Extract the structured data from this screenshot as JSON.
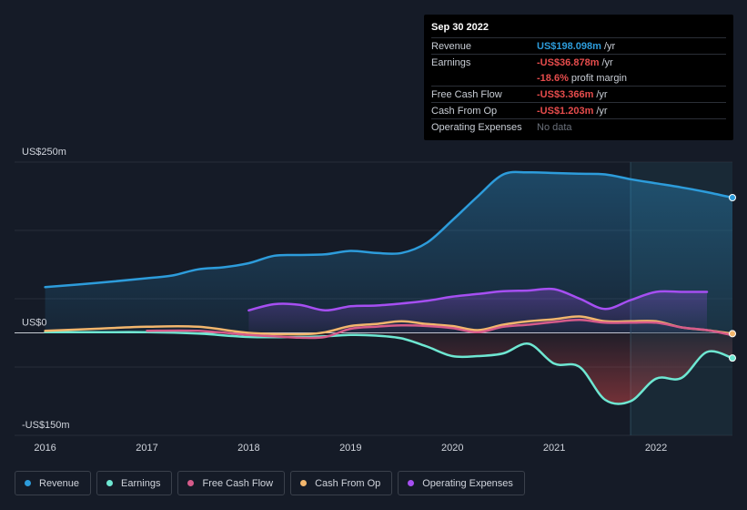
{
  "tooltip": {
    "date": "Sep 30 2022",
    "revenue_label": "Revenue",
    "revenue_value": "US$198.098m",
    "earnings_label": "Earnings",
    "earnings_value": "-US$36.878m",
    "margin_value": "-18.6%",
    "margin_text": "profit margin",
    "fcf_label": "Free Cash Flow",
    "fcf_value": "-US$3.366m",
    "cfo_label": "Cash From Op",
    "cfo_value": "-US$1.203m",
    "opex_label": "Operating Expenses",
    "opex_value": "No data",
    "unit": "/yr"
  },
  "legend": [
    {
      "label": "Revenue",
      "color": "#2d9cdb"
    },
    {
      "label": "Earnings",
      "color": "#6ee7d2"
    },
    {
      "label": "Free Cash Flow",
      "color": "#d65b8a"
    },
    {
      "label": "Cash From Op",
      "color": "#f2b66d"
    },
    {
      "label": "Operating Expenses",
      "color": "#a64ff2"
    }
  ],
  "chart_data": {
    "type": "area",
    "y_tick_labels": [
      "US$250m",
      "US$0",
      "-US$150m"
    ],
    "ylim": [
      -150,
      250
    ],
    "xlim": [
      2015.7,
      2022.75
    ],
    "x_tick_labels": [
      "2016",
      "2017",
      "2018",
      "2019",
      "2020",
      "2021",
      "2022"
    ],
    "x_ticks": [
      2016,
      2017,
      2018,
      2019,
      2020,
      2021,
      2022
    ],
    "highlight_from": 2021.75,
    "series": [
      {
        "name": "Revenue",
        "color": "#2d9cdb",
        "points": [
          [
            2016.0,
            67
          ],
          [
            2016.5,
            73
          ],
          [
            2017.0,
            80
          ],
          [
            2017.25,
            84
          ],
          [
            2017.5,
            93
          ],
          [
            2017.75,
            96
          ],
          [
            2018.0,
            102
          ],
          [
            2018.25,
            113
          ],
          [
            2018.5,
            114
          ],
          [
            2018.75,
            115
          ],
          [
            2019.0,
            120
          ],
          [
            2019.25,
            117
          ],
          [
            2019.5,
            117
          ],
          [
            2019.75,
            132
          ],
          [
            2020.0,
            165
          ],
          [
            2020.25,
            200
          ],
          [
            2020.5,
            232
          ],
          [
            2020.75,
            235
          ],
          [
            2021.0,
            234
          ],
          [
            2021.25,
            233
          ],
          [
            2021.5,
            232
          ],
          [
            2021.75,
            225
          ],
          [
            2022.0,
            219
          ],
          [
            2022.25,
            213
          ],
          [
            2022.5,
            206
          ],
          [
            2022.75,
            198
          ]
        ]
      },
      {
        "name": "Earnings",
        "color": "#6ee7d2",
        "points": [
          [
            2016.0,
            1
          ],
          [
            2016.5,
            1
          ],
          [
            2017.0,
            1
          ],
          [
            2017.5,
            -1
          ],
          [
            2018.0,
            -6
          ],
          [
            2018.5,
            -6
          ],
          [
            2018.75,
            -5
          ],
          [
            2019.0,
            -3
          ],
          [
            2019.25,
            -4
          ],
          [
            2019.5,
            -8
          ],
          [
            2019.75,
            -20
          ],
          [
            2020.0,
            -34
          ],
          [
            2020.25,
            -34
          ],
          [
            2020.5,
            -30
          ],
          [
            2020.75,
            -16
          ],
          [
            2021.0,
            -45
          ],
          [
            2021.25,
            -50
          ],
          [
            2021.5,
            -98
          ],
          [
            2021.75,
            -100
          ],
          [
            2022.0,
            -67
          ],
          [
            2022.25,
            -66
          ],
          [
            2022.5,
            -28
          ],
          [
            2022.75,
            -36.878
          ]
        ]
      },
      {
        "name": "Free Cash Flow",
        "color": "#d65b8a",
        "points": [
          [
            2017.0,
            3
          ],
          [
            2017.5,
            3
          ],
          [
            2018.0,
            -3
          ],
          [
            2018.25,
            -5
          ],
          [
            2018.5,
            -7
          ],
          [
            2018.75,
            -6
          ],
          [
            2019.0,
            6
          ],
          [
            2019.25,
            9
          ],
          [
            2019.5,
            11
          ],
          [
            2019.75,
            10
          ],
          [
            2020.0,
            7
          ],
          [
            2020.25,
            1
          ],
          [
            2020.5,
            9
          ],
          [
            2020.75,
            12
          ],
          [
            2021.0,
            16
          ],
          [
            2021.25,
            19
          ],
          [
            2021.5,
            15
          ],
          [
            2021.75,
            15
          ],
          [
            2022.0,
            15
          ],
          [
            2022.25,
            8
          ],
          [
            2022.5,
            4
          ],
          [
            2022.75,
            -3.366
          ]
        ]
      },
      {
        "name": "Cash From Op",
        "color": "#f2b66d",
        "points": [
          [
            2016.0,
            3
          ],
          [
            2016.5,
            6
          ],
          [
            2017.0,
            9
          ],
          [
            2017.5,
            9
          ],
          [
            2018.0,
            0
          ],
          [
            2018.5,
            -2
          ],
          [
            2018.75,
            1
          ],
          [
            2019.0,
            10
          ],
          [
            2019.25,
            13
          ],
          [
            2019.5,
            17
          ],
          [
            2019.75,
            13
          ],
          [
            2020.0,
            10
          ],
          [
            2020.25,
            4
          ],
          [
            2020.5,
            12
          ],
          [
            2020.75,
            17
          ],
          [
            2021.0,
            20
          ],
          [
            2021.25,
            24
          ],
          [
            2021.5,
            17
          ],
          [
            2021.75,
            17
          ],
          [
            2022.0,
            17
          ],
          [
            2022.25,
            8
          ],
          [
            2022.5,
            4
          ],
          [
            2022.75,
            -1.203
          ]
        ]
      },
      {
        "name": "Operating Expenses",
        "color": "#a64ff2",
        "points": [
          [
            2018.0,
            33
          ],
          [
            2018.25,
            42
          ],
          [
            2018.5,
            41
          ],
          [
            2018.75,
            33
          ],
          [
            2019.0,
            39
          ],
          [
            2019.25,
            40
          ],
          [
            2019.5,
            43
          ],
          [
            2019.75,
            47
          ],
          [
            2020.0,
            53
          ],
          [
            2020.25,
            57
          ],
          [
            2020.5,
            61
          ],
          [
            2020.75,
            62
          ],
          [
            2021.0,
            64
          ],
          [
            2021.25,
            50
          ],
          [
            2021.5,
            35
          ],
          [
            2021.75,
            48
          ],
          [
            2022.0,
            60
          ],
          [
            2022.25,
            60
          ],
          [
            2022.5,
            60
          ]
        ]
      }
    ]
  }
}
